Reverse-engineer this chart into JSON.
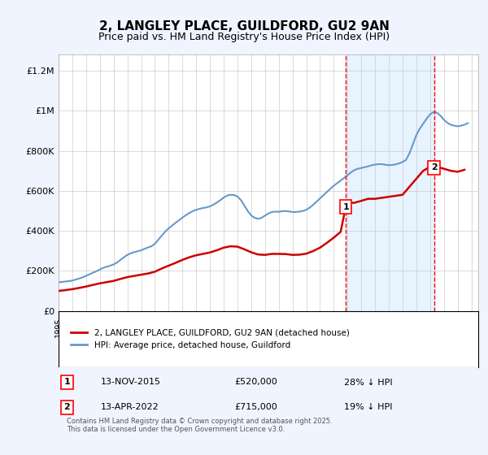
{
  "title": "2, LANGLEY PLACE, GUILDFORD, GU2 9AN",
  "subtitle": "Price paid vs. HM Land Registry's House Price Index (HPI)",
  "background_color": "#f0f4ff",
  "plot_bg_color": "#ffffff",
  "ylabel_ticks": [
    "£0",
    "£200K",
    "£400K",
    "£600K",
    "£800K",
    "£1M",
    "£1.2M"
  ],
  "ytick_vals": [
    0,
    200000,
    400000,
    600000,
    800000,
    1000000,
    1200000
  ],
  "ylim": [
    0,
    1280000
  ],
  "xlim_start": 1995.0,
  "xlim_end": 2025.5,
  "marker1_x": 2015.87,
  "marker1_y": 520000,
  "marker2_x": 2022.29,
  "marker2_y": 715000,
  "marker1_label": "1",
  "marker2_label": "2",
  "red_color": "#cc0000",
  "blue_color": "#6699cc",
  "dashed_red": "#ff0000",
  "legend_label_red": "2, LANGLEY PLACE, GUILDFORD, GU2 9AN (detached house)",
  "legend_label_blue": "HPI: Average price, detached house, Guildford",
  "table_row1": [
    "1",
    "13-NOV-2015",
    "£520,000",
    "28% ↓ HPI"
  ],
  "table_row2": [
    "2",
    "13-APR-2022",
    "£715,000",
    "19% ↓ HPI"
  ],
  "footer": "Contains HM Land Registry data © Crown copyright and database right 2025.\nThis data is licensed under the Open Government Licence v3.0.",
  "hpi_years": [
    1995.0,
    1995.25,
    1995.5,
    1995.75,
    1996.0,
    1996.25,
    1996.5,
    1996.75,
    1997.0,
    1997.25,
    1997.5,
    1997.75,
    1998.0,
    1998.25,
    1998.5,
    1998.75,
    1999.0,
    1999.25,
    1999.5,
    1999.75,
    2000.0,
    2000.25,
    2000.5,
    2000.75,
    2001.0,
    2001.25,
    2001.5,
    2001.75,
    2002.0,
    2002.25,
    2002.5,
    2002.75,
    2003.0,
    2003.25,
    2003.5,
    2003.75,
    2004.0,
    2004.25,
    2004.5,
    2004.75,
    2005.0,
    2005.25,
    2005.5,
    2005.75,
    2006.0,
    2006.25,
    2006.5,
    2006.75,
    2007.0,
    2007.25,
    2007.5,
    2007.75,
    2008.0,
    2008.25,
    2008.5,
    2008.75,
    2009.0,
    2009.25,
    2009.5,
    2009.75,
    2010.0,
    2010.25,
    2010.5,
    2010.75,
    2011.0,
    2011.25,
    2011.5,
    2011.75,
    2012.0,
    2012.25,
    2012.5,
    2012.75,
    2013.0,
    2013.25,
    2013.5,
    2013.75,
    2014.0,
    2014.25,
    2014.5,
    2014.75,
    2015.0,
    2015.25,
    2015.5,
    2015.75,
    2016.0,
    2016.25,
    2016.5,
    2016.75,
    2017.0,
    2017.25,
    2017.5,
    2017.75,
    2018.0,
    2018.25,
    2018.5,
    2018.75,
    2019.0,
    2019.25,
    2019.5,
    2019.75,
    2020.0,
    2020.25,
    2020.5,
    2020.75,
    2021.0,
    2021.25,
    2021.5,
    2021.75,
    2022.0,
    2022.25,
    2022.5,
    2022.75,
    2023.0,
    2023.25,
    2023.5,
    2023.75,
    2024.0,
    2024.25,
    2024.5,
    2024.75
  ],
  "hpi_values": [
    143000,
    145000,
    147000,
    149000,
    152000,
    157000,
    162000,
    168000,
    175000,
    183000,
    191000,
    198000,
    207000,
    215000,
    221000,
    226000,
    232000,
    242000,
    255000,
    268000,
    280000,
    288000,
    294000,
    298000,
    303000,
    310000,
    317000,
    323000,
    335000,
    356000,
    376000,
    396000,
    412000,
    426000,
    440000,
    453000,
    466000,
    478000,
    489000,
    498000,
    505000,
    510000,
    514000,
    517000,
    522000,
    531000,
    541000,
    553000,
    566000,
    576000,
    580000,
    579000,
    572000,
    554000,
    527000,
    499000,
    477000,
    465000,
    460000,
    465000,
    476000,
    487000,
    494000,
    496000,
    495000,
    498000,
    499000,
    497000,
    494000,
    494000,
    496000,
    499000,
    505000,
    516000,
    530000,
    546000,
    562000,
    578000,
    594000,
    610000,
    625000,
    638000,
    651000,
    664000,
    678000,
    692000,
    703000,
    710000,
    714000,
    718000,
    722000,
    727000,
    731000,
    733000,
    733000,
    730000,
    728000,
    729000,
    732000,
    737000,
    744000,
    754000,
    787000,
    832000,
    878000,
    910000,
    935000,
    960000,
    982000,
    993000,
    990000,
    975000,
    955000,
    940000,
    930000,
    925000,
    922000,
    925000,
    930000,
    938000
  ],
  "red_years": [
    1995.0,
    1995.5,
    1996.0,
    1996.5,
    1997.0,
    1997.5,
    1998.0,
    1998.5,
    1999.0,
    1999.5,
    2000.0,
    2000.5,
    2001.0,
    2001.5,
    2002.0,
    2002.5,
    2003.0,
    2003.5,
    2004.0,
    2004.5,
    2005.0,
    2005.5,
    2006.0,
    2006.5,
    2007.0,
    2007.5,
    2008.0,
    2008.5,
    2009.0,
    2009.5,
    2010.0,
    2010.5,
    2011.0,
    2011.5,
    2012.0,
    2012.5,
    2013.0,
    2013.5,
    2014.0,
    2014.5,
    2015.0,
    2015.5,
    2015.87,
    2016.0,
    2016.5,
    2017.0,
    2017.5,
    2018.0,
    2018.5,
    2019.0,
    2019.5,
    2020.0,
    2020.5,
    2021.0,
    2021.5,
    2022.0,
    2022.29,
    2022.5,
    2023.0,
    2023.5,
    2024.0,
    2024.5
  ],
  "red_values": [
    100000,
    104000,
    109000,
    115000,
    122000,
    130000,
    138000,
    144000,
    150000,
    160000,
    169000,
    175000,
    181000,
    187000,
    196000,
    212000,
    226000,
    240000,
    255000,
    268000,
    278000,
    285000,
    292000,
    303000,
    316000,
    323000,
    321000,
    308000,
    293000,
    282000,
    280000,
    285000,
    285000,
    284000,
    280000,
    281000,
    286000,
    299000,
    316000,
    340000,
    366000,
    395000,
    520000,
    540000,
    540000,
    550000,
    560000,
    560000,
    565000,
    570000,
    575000,
    580000,
    620000,
    660000,
    700000,
    720000,
    715000,
    720000,
    710000,
    700000,
    695000,
    705000
  ]
}
